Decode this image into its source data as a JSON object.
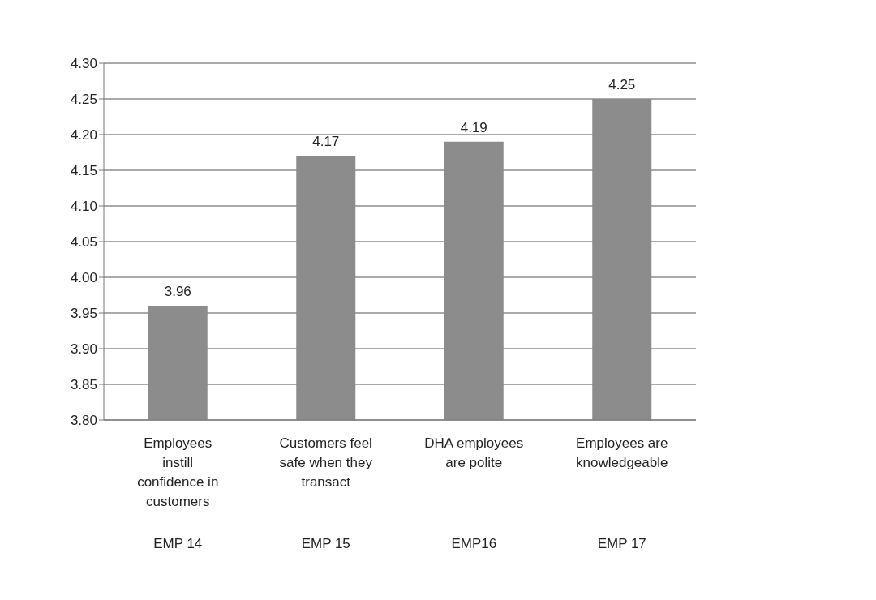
{
  "chart_data": {
    "type": "bar",
    "categories": [
      "Employees instill confidence in customers",
      "Customers feel safe when they transact",
      "DHA employees are polite",
      "Employees are knowledgeable"
    ],
    "values": [
      3.96,
      4.17,
      4.19,
      4.25
    ],
    "color": "#8c8c8c",
    "ylim": [
      3.8,
      4.3
    ],
    "yticks": [
      {
        "value": 3.8,
        "label": "3.80"
      },
      {
        "value": 3.85,
        "label": "3.85"
      },
      {
        "value": 3.9,
        "label": "3.90"
      },
      {
        "value": 3.95,
        "label": "3.95"
      },
      {
        "value": 4,
        "label": "4.00"
      },
      {
        "value": 4.05,
        "label": "4.05"
      },
      {
        "value": 4.1,
        "label": "4.10"
      },
      {
        "value": 4.15,
        "label": "4.15"
      },
      {
        "value": 4.2,
        "label": "4.20"
      },
      {
        "value": 4.25,
        "label": "4.25"
      },
      {
        "value": 4.3,
        "label": "4.30"
      }
    ],
    "annotations": [
      "EMP 14",
      "EMP 15",
      "EMP16",
      "EMP 17"
    ],
    "grid": "y",
    "data_labels": true
  }
}
